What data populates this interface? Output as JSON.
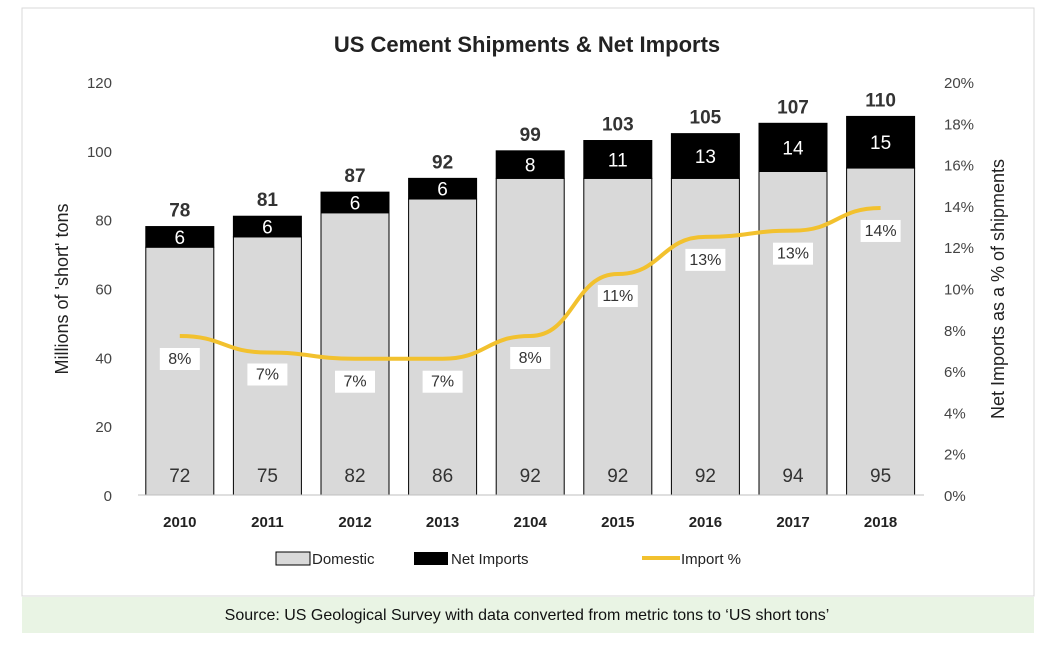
{
  "chart_data": {
    "type": "bar",
    "stacked": true,
    "title": "US Cement Shipments & Net Imports",
    "ylabel": "Millions of 'short' tons",
    "y2label": "Net Imports as a % of shipments",
    "ylim": [
      0,
      120
    ],
    "yticks": [
      "0",
      "20",
      "40",
      "60",
      "80",
      "100",
      "120"
    ],
    "y2lim": [
      0,
      20
    ],
    "y2ticks": [
      "0%",
      "2%",
      "4%",
      "6%",
      "8%",
      "10%",
      "12%",
      "14%",
      "16%",
      "18%",
      "20%"
    ],
    "categories": [
      "2010",
      "2011",
      "2012",
      "2013",
      "2104",
      "2015",
      "2016",
      "2017",
      "2018"
    ],
    "series": [
      {
        "name": "Domestic",
        "color": "#d9d9d9",
        "values": [
          72,
          75,
          82,
          86,
          92,
          92,
          92,
          94,
          95
        ]
      },
      {
        "name": "Net Imports",
        "color": "#000000",
        "values": [
          6,
          6,
          6,
          6,
          8,
          11,
          13,
          14,
          15
        ]
      }
    ],
    "totals": [
      78,
      81,
      87,
      92,
      99,
      103,
      105,
      107,
      110
    ],
    "line_series": {
      "name": "Import %",
      "color": "#f2c12e",
      "axis": "right",
      "values": [
        7.7,
        6.9,
        6.6,
        6.6,
        7.7,
        10.7,
        12.5,
        12.8,
        13.9
      ],
      "labels": [
        "8%",
        "7%",
        "7%",
        "7%",
        "8%",
        "11%",
        "13%",
        "13%",
        "14%"
      ]
    },
    "legend": "bottom",
    "grid": false
  },
  "source": "Source: US Geological Survey with data converted from metric tons to ‘US short tons’"
}
